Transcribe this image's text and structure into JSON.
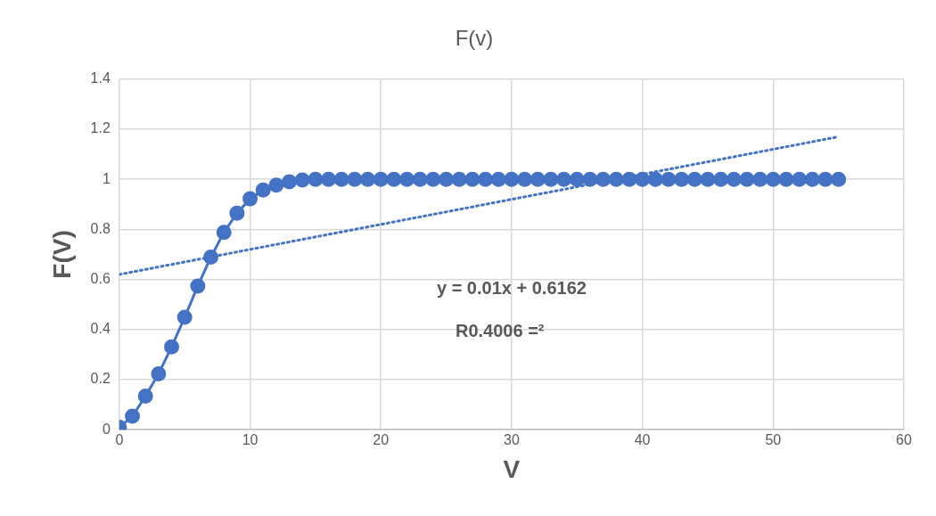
{
  "chart_data": {
    "type": "line",
    "title": "F(v)",
    "xlabel": "V",
    "ylabel": "F(V)",
    "x": [
      0,
      1,
      2,
      3,
      4,
      5,
      6,
      7,
      8,
      9,
      10,
      11,
      12,
      13,
      14,
      15,
      16,
      17,
      18,
      19,
      20,
      21,
      22,
      23,
      24,
      25,
      26,
      27,
      28,
      29,
      30,
      31,
      32,
      33,
      34,
      35,
      36,
      37,
      38,
      39,
      40,
      41,
      42,
      43,
      44,
      45,
      46,
      47,
      48,
      49,
      50,
      51,
      52,
      53,
      54,
      55
    ],
    "series": [
      {
        "color": "#4472c4",
        "marker": "circle",
        "line_style": "solid",
        "values": [
          0.01,
          0.054,
          0.134,
          0.223,
          0.331,
          0.449,
          0.574,
          0.689,
          0.788,
          0.865,
          0.922,
          0.957,
          0.977,
          0.99,
          0.997,
          1,
          1,
          1,
          1,
          1,
          1,
          1,
          1,
          1,
          1,
          1,
          1,
          1,
          1,
          1,
          1,
          1,
          1,
          1,
          1,
          1,
          1,
          1,
          1,
          1,
          1,
          1,
          1,
          1,
          1,
          1,
          1,
          1,
          1,
          1,
          1,
          1,
          1,
          1,
          1,
          1
        ]
      },
      {
        "type": "line",
        "color": "#4472c4",
        "marker": "none",
        "line_style": "dotted",
        "x": [
          0,
          55
        ],
        "values": [
          0.62,
          1.17
        ]
      }
    ],
    "xlim": [
      0,
      60
    ],
    "xticks": [
      0,
      10,
      20,
      30,
      40,
      50,
      60
    ],
    "ylim": [
      0,
      1.4
    ],
    "yticks": [
      0,
      0.2,
      0.4,
      0.6,
      0.8,
      1,
      1.2,
      1.4
    ],
    "grid": true,
    "legend": false,
    "annotations": [
      "y = 0.01x + 0.6162",
      "R0.4006 =²"
    ]
  }
}
